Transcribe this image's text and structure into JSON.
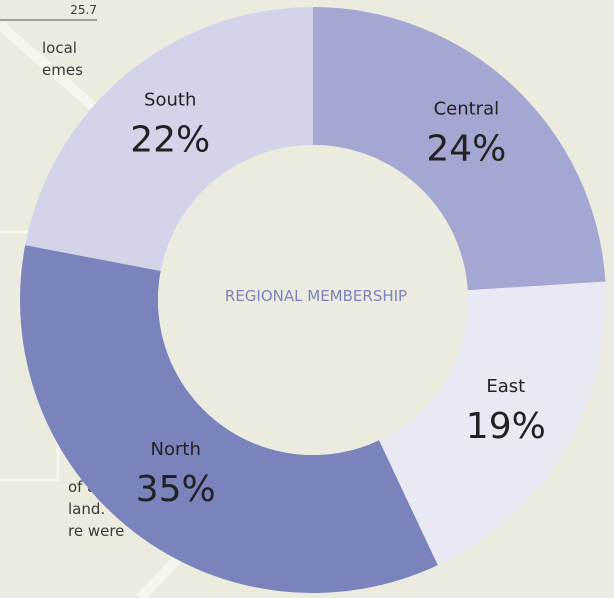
{
  "chart_data": {
    "type": "donut",
    "title": "REGIONAL MEMBERSHIP",
    "categories": [
      "Central",
      "East",
      "North",
      "South"
    ],
    "values": [
      24,
      19,
      35,
      22
    ],
    "value_labels": [
      "24%",
      "19%",
      "35%",
      "22%"
    ],
    "colors": [
      "#a5a7d3",
      "#e9e9f4",
      "#7b83bd",
      "#d3d4ea"
    ]
  },
  "background_text": [
    "25.7",
    "local",
    "emes",
    ")",
    "of a",
    "land.",
    "re were"
  ]
}
